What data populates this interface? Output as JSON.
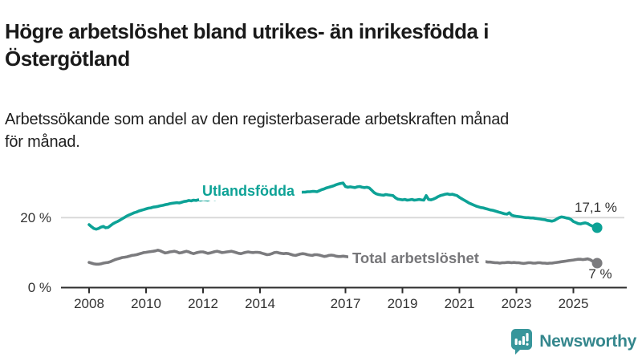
{
  "header": {
    "title": "Högre arbetslöshet bland utrikes- än inrikesfödda i Östergötland",
    "title_line1": "Högre arbetslöshet bland utrikes- än inrikesfödda i",
    "title_line2": "Östergötland",
    "subtitle_line1": "Arbetssökande som andel av den registerbaserade arbetskraften månad",
    "subtitle_line2": "för månad."
  },
  "chart_data": {
    "type": "line",
    "unit": "%",
    "x_start": "2008-01",
    "x_end": "2025-11",
    "points_per_year": 12,
    "x_ticks": [
      2008,
      2010,
      2012,
      2014,
      2017,
      2019,
      2021,
      2023,
      2025
    ],
    "y_axis": {
      "min": 0,
      "max": 32,
      "grid_at": 20,
      "ticks": [
        {
          "value": 0,
          "label": "0 %"
        },
        {
          "value": 20,
          "label": "20 %"
        }
      ]
    },
    "series": [
      {
        "name": "Utlandsfödda",
        "color": "#0da296",
        "end_label": "17,1 %",
        "end_value": 17.1,
        "values": [
          18.0,
          17.4,
          16.9,
          16.7,
          16.9,
          17.3,
          17.5,
          17.1,
          17.2,
          17.7,
          18.2,
          18.6,
          18.9,
          19.3,
          19.7,
          20.1,
          20.5,
          20.8,
          21.1,
          21.4,
          21.6,
          21.9,
          22.1,
          22.3,
          22.5,
          22.7,
          22.8,
          23.0,
          23.1,
          23.2,
          23.4,
          23.5,
          23.7,
          23.8,
          24.0,
          24.1,
          24.2,
          24.3,
          24.2,
          24.4,
          24.6,
          24.7,
          24.9,
          24.8,
          25.0,
          24.9,
          25.1,
          25.0,
          25.2,
          25.1,
          25.0,
          25.3,
          25.4,
          25.2,
          25.5,
          25.6,
          25.5,
          25.7,
          25.8,
          25.7,
          25.9,
          25.9,
          26.0,
          26.0,
          26.1,
          26.1,
          26.2,
          26.2,
          26.3,
          26.3,
          26.4,
          26.4,
          26.4,
          26.5,
          26.5,
          26.6,
          26.6,
          26.7,
          26.7,
          26.8,
          26.8,
          26.9,
          26.9,
          27.0,
          27.0,
          27.0,
          27.1,
          27.1,
          27.2,
          27.2,
          27.3,
          27.3,
          27.4,
          27.4,
          27.5,
          27.5,
          27.4,
          27.7,
          28.0,
          28.2,
          28.5,
          28.7,
          28.9,
          29.1,
          29.4,
          29.6,
          29.8,
          29.9,
          28.9,
          28.7,
          28.8,
          28.7,
          28.6,
          28.8,
          28.9,
          28.7,
          28.6,
          28.7,
          28.5,
          27.9,
          27.2,
          26.8,
          26.6,
          26.5,
          26.4,
          26.6,
          26.5,
          26.4,
          26.3,
          25.7,
          25.3,
          25.2,
          25.1,
          25.2,
          25.0,
          25.1,
          25.2,
          25.0,
          25.1,
          25.2,
          25.1,
          25.0,
          26.3,
          25.2,
          25.1,
          25.3,
          25.6,
          26.0,
          26.3,
          26.5,
          26.7,
          26.8,
          26.6,
          26.7,
          26.5,
          26.3,
          25.8,
          25.4,
          25.0,
          24.6,
          24.2,
          23.9,
          23.6,
          23.3,
          23.1,
          22.9,
          22.8,
          22.6,
          22.4,
          22.2,
          22.1,
          21.9,
          21.7,
          21.5,
          21.3,
          21.1,
          21.0,
          21.4,
          20.7,
          20.5,
          20.4,
          20.3,
          20.2,
          20.1,
          20.0,
          20.0,
          19.9,
          19.9,
          19.8,
          19.7,
          19.6,
          19.5,
          19.4,
          19.2,
          19.1,
          19.0,
          19.2,
          19.6,
          20.0,
          20.2,
          20.1,
          19.9,
          19.8,
          19.5,
          18.9,
          18.6,
          18.3,
          18.2,
          18.4,
          18.5,
          18.3,
          17.9,
          17.6,
          17.3,
          17.1
        ]
      },
      {
        "name": "Total arbetslöshet",
        "color": "#7b7b7e",
        "end_label": "7 %",
        "end_value": 7.0,
        "values": [
          7.2,
          7.0,
          6.8,
          6.7,
          6.7,
          6.8,
          7.0,
          7.1,
          7.2,
          7.4,
          7.7,
          8.0,
          8.2,
          8.4,
          8.6,
          8.7,
          8.8,
          9.0,
          9.2,
          9.3,
          9.4,
          9.6,
          9.8,
          10.0,
          10.1,
          10.2,
          10.3,
          10.4,
          10.5,
          10.7,
          10.5,
          10.2,
          9.9,
          10.0,
          10.2,
          10.3,
          10.4,
          10.2,
          9.9,
          10.0,
          10.2,
          10.4,
          10.2,
          9.9,
          9.7,
          9.9,
          10.1,
          10.2,
          10.2,
          10.0,
          9.8,
          9.9,
          10.1,
          10.3,
          10.4,
          10.2,
          10.0,
          10.1,
          10.2,
          10.3,
          10.4,
          10.2,
          10.0,
          9.8,
          9.7,
          9.9,
          10.1,
          10.2,
          10.1,
          10.0,
          10.1,
          10.1,
          10.0,
          9.8,
          9.6,
          9.4,
          9.5,
          9.7,
          10.0,
          10.1,
          9.9,
          9.8,
          9.7,
          9.8,
          9.7,
          9.5,
          9.3,
          9.2,
          9.4,
          9.6,
          9.7,
          9.6,
          9.4,
          9.3,
          9.2,
          9.4,
          9.4,
          9.3,
          9.1,
          8.9,
          9.0,
          9.2,
          9.3,
          9.2,
          9.0,
          8.9,
          8.9,
          9.0,
          8.9,
          8.8,
          8.7,
          8.6,
          8.7,
          8.9,
          9.0,
          8.8,
          8.6,
          8.5,
          8.4,
          8.4,
          8.3,
          8.1,
          8.0,
          7.9,
          7.9,
          8.0,
          8.1,
          8.0,
          7.8,
          7.7,
          7.7,
          7.8,
          7.8,
          7.7,
          7.6,
          7.5,
          7.6,
          7.7,
          7.8,
          7.7,
          7.6,
          7.7,
          7.8,
          7.9,
          8.0,
          8.1,
          8.4,
          9.1,
          9.4,
          9.6,
          9.7,
          9.6,
          9.5,
          9.4,
          9.3,
          9.2,
          9.1,
          9.0,
          8.8,
          8.6,
          8.4,
          8.2,
          8.0,
          7.9,
          7.7,
          7.6,
          7.5,
          7.4,
          7.3,
          7.3,
          7.2,
          7.1,
          7.1,
          7.0,
          7.1,
          7.1,
          7.2,
          7.2,
          7.1,
          7.2,
          7.1,
          7.1,
          7.0,
          6.9,
          7.0,
          7.1,
          7.1,
          7.0,
          7.0,
          7.1,
          7.1,
          7.0,
          7.0,
          6.9,
          7.0,
          7.0,
          7.1,
          7.2,
          7.3,
          7.4,
          7.5,
          7.6,
          7.7,
          7.8,
          7.9,
          8.0,
          8.1,
          8.1,
          8.0,
          8.1,
          8.2,
          8.0,
          7.6,
          7.2,
          7.0
        ]
      }
    ]
  },
  "branding": {
    "name": "Newsworthy",
    "icon": "newsworthy-bars-speech-bubble-icon",
    "icon_color": "#38969b",
    "text_color": "#35878d"
  }
}
